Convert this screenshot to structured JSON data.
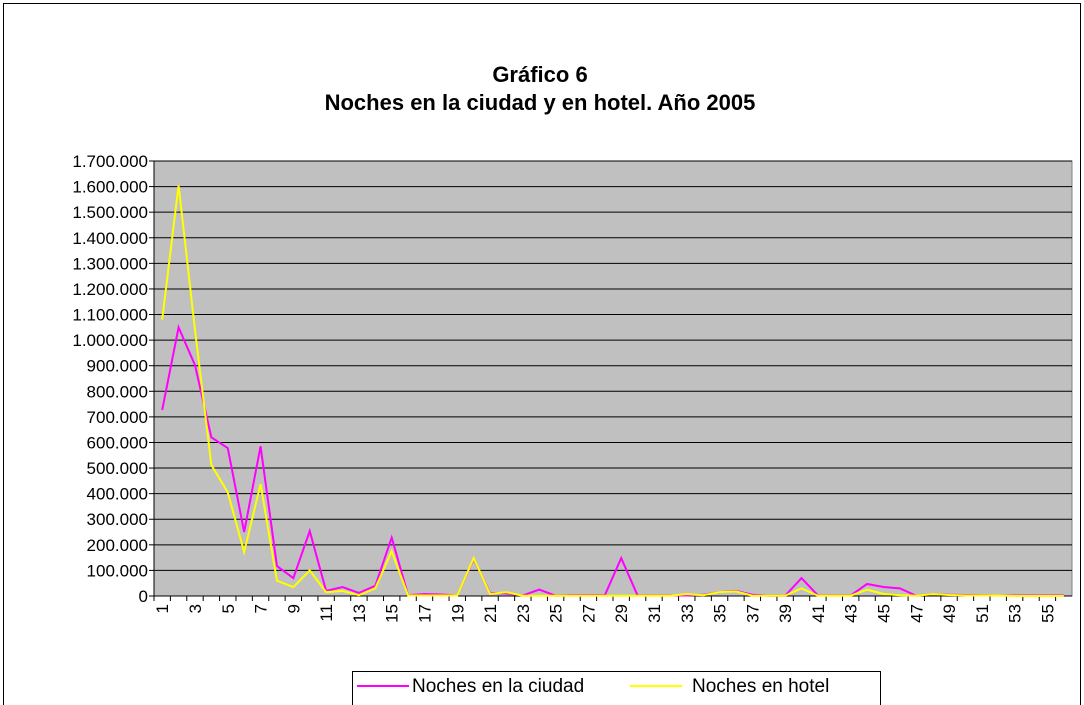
{
  "chart_data": {
    "type": "line",
    "title": "Gráfico 6",
    "subtitle": "Noches en la ciudad y en hotel. Año 2005",
    "categories": [
      "1",
      null,
      "3",
      null,
      "5",
      null,
      "7",
      null,
      "9",
      null,
      "11",
      null,
      "13",
      null,
      "15",
      null,
      "17",
      null,
      "19",
      null,
      "21",
      null,
      "23",
      null,
      "25",
      null,
      "27",
      null,
      "29",
      null,
      "31",
      null,
      "33",
      null,
      "35",
      null,
      "37",
      null,
      "39",
      null,
      "41",
      null,
      "43",
      null,
      "45",
      null,
      "47",
      null,
      "49",
      null,
      "51",
      null,
      "53",
      null,
      "55",
      null
    ],
    "series": [
      {
        "name": "Noches en la ciudad",
        "color": "#ff00ff",
        "values": [
          727000,
          1050000,
          902000,
          620000,
          578000,
          250000,
          585000,
          117000,
          70000,
          254000,
          20000,
          35000,
          12000,
          40000,
          228000,
          3000,
          8000,
          6000,
          2000,
          145000,
          12000,
          10000,
          2000,
          25000,
          1000,
          3000,
          3000,
          3000,
          148000,
          2000,
          2000,
          2000,
          2000,
          5000,
          15000,
          20000,
          5000,
          1000,
          1000,
          70000,
          2000,
          2000,
          2000,
          47000,
          35000,
          30000,
          1000,
          8000,
          5000,
          4000,
          3000,
          2000,
          2000,
          2000,
          2000,
          2000
        ]
      },
      {
        "name": "Noches en hotel",
        "color": "#ffff00",
        "values": [
          1080000,
          1605000,
          1040000,
          512000,
          405000,
          172000,
          437000,
          60000,
          35000,
          100000,
          15000,
          20000,
          3000,
          30000,
          175000,
          2000,
          2000,
          2000,
          2000,
          148000,
          8000,
          15000,
          1000,
          1000,
          1000,
          1000,
          1000,
          1000,
          1000,
          1000,
          1000,
          1000,
          8000,
          3000,
          15000,
          18000,
          1000,
          1000,
          1000,
          30000,
          1000,
          1000,
          1000,
          25000,
          8000,
          3000,
          1000,
          8000,
          4000,
          2000,
          2000,
          2000,
          0,
          0,
          0,
          0
        ]
      }
    ],
    "ylim": [
      0,
      1700000
    ],
    "yticks": [
      0,
      {
        "value": 100000,
        "label": "100.000"
      },
      {
        "value": 200000,
        "label": "200.000"
      },
      {
        "value": 300000,
        "label": "300.000"
      },
      {
        "value": 400000,
        "label": "400.000"
      },
      {
        "value": 500000,
        "label": "500.000"
      },
      {
        "value": 600000,
        "label": "600.000"
      },
      {
        "value": 700000,
        "label": "700.000"
      },
      {
        "value": 800000,
        "label": "800.000"
      },
      {
        "value": 900000,
        "label": "900.000"
      },
      {
        "value": 1000000,
        "label": "1.000.000"
      },
      {
        "value": 1100000,
        "label": "1.100.000"
      },
      {
        "value": 1200000,
        "label": "1.200.000"
      },
      {
        "value": 1300000,
        "label": "1.300.000"
      },
      {
        "value": 1400000,
        "label": "1.400.000"
      },
      {
        "value": 1500000,
        "label": "1.500.000"
      },
      {
        "value": 1600000,
        "label": "1.600.000"
      },
      {
        "value": 1700000,
        "label": "1.700.000"
      }
    ],
    "grid": true,
    "legend": "bottom"
  }
}
